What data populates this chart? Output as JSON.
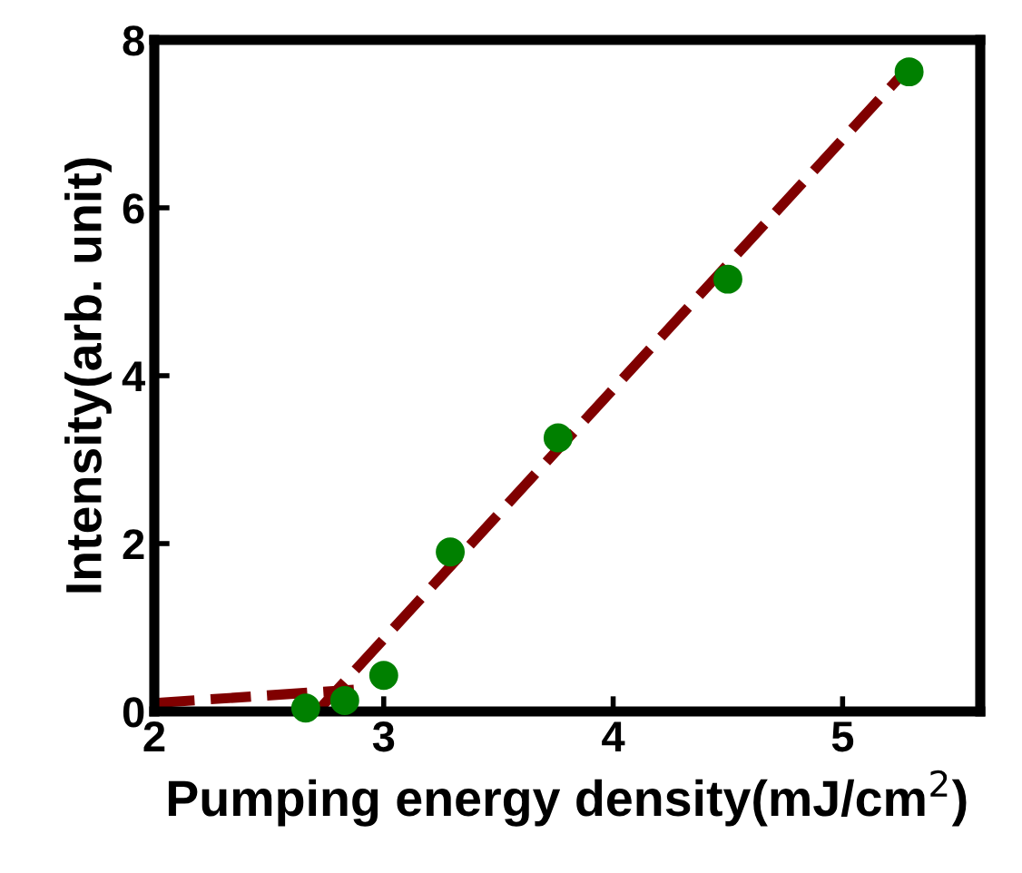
{
  "chart_data": {
    "type": "scatter",
    "xlabel": "Pumping energy density(mJ/cm$^{2}$)",
    "ylabel": "Intensity(arb. unit)",
    "xlim": [
      2,
      5.6
    ],
    "ylim": [
      0,
      8
    ],
    "xticks": [
      2,
      3,
      4,
      5
    ],
    "yticks": [
      0,
      2,
      4,
      6,
      8
    ],
    "grid": false,
    "legend": false,
    "series": [
      {
        "color": "#008000",
        "marker": "circle",
        "x": [
          2.66,
          2.83,
          3.0,
          3.29,
          3.76,
          4.5,
          5.29
        ],
        "values": [
          0.04,
          0.13,
          0.43,
          1.9,
          3.26,
          5.15,
          7.62
        ]
      },
      {
        "type": "line",
        "color": "#800000",
        "line_style": "dashed",
        "marker": "none",
        "x": [
          2.0,
          2.87
        ],
        "values": [
          0.1,
          0.26
        ]
      },
      {
        "type": "line",
        "color": "#800000",
        "line_style": "dashed",
        "marker": "none",
        "x": [
          2.71,
          5.27
        ],
        "values": [
          0.0,
          7.62
        ]
      }
    ]
  }
}
